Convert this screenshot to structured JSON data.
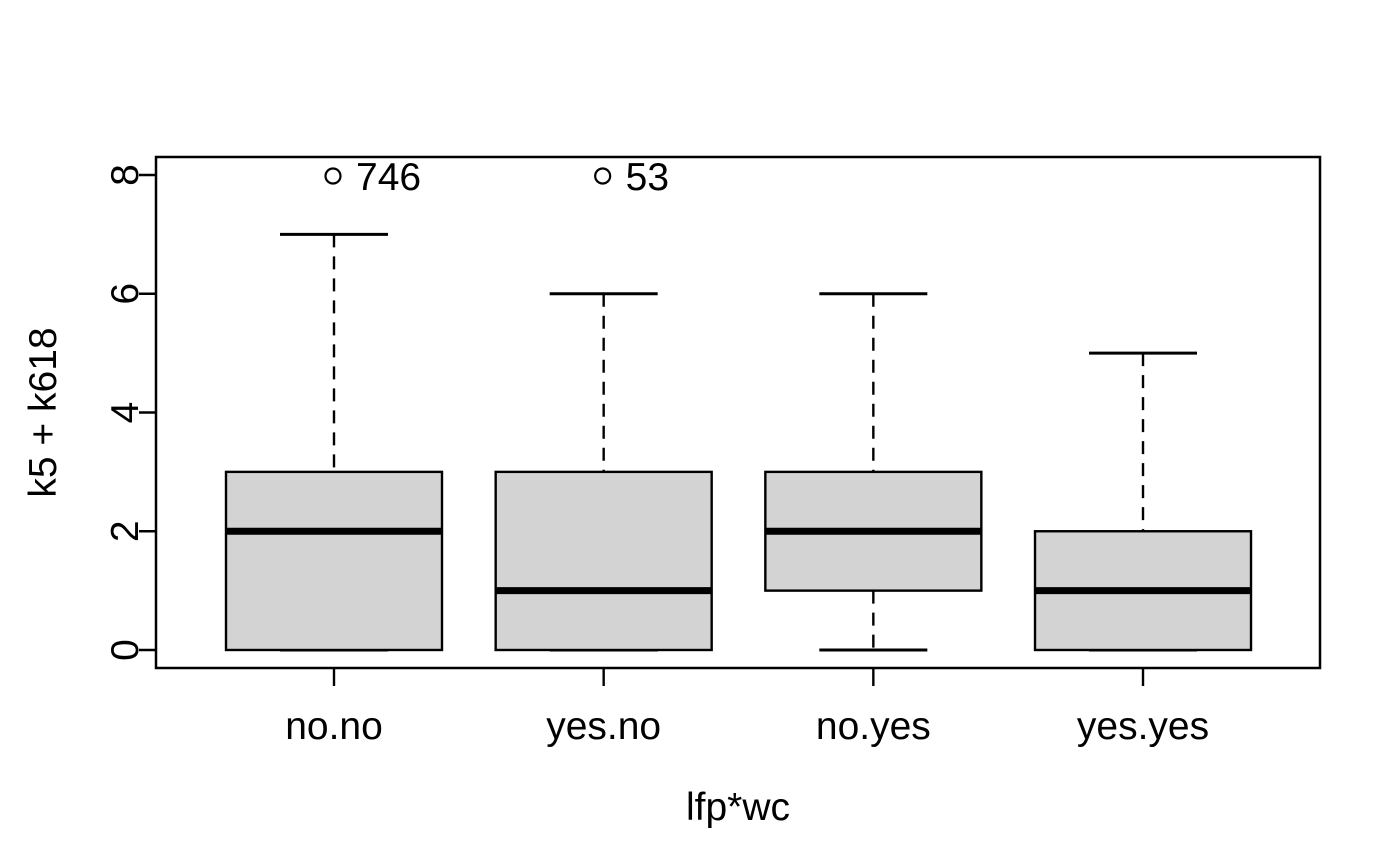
{
  "chart_data": {
    "type": "boxplot",
    "title": "",
    "xlabel": "lfp*wc",
    "ylabel": "k5 + k618",
    "categories": [
      "no.no",
      "yes.no",
      "no.yes",
      "yes.yes"
    ],
    "ylim": [
      0,
      8
    ],
    "yticks": [
      0,
      2,
      4,
      6,
      8
    ],
    "grid": false,
    "legend": "none",
    "groups": [
      {
        "category": "no.no",
        "q1": 0,
        "median": 2,
        "q3": 3,
        "whisker_low": 0,
        "whisker_high": 7,
        "outliers": [
          {
            "value": 8,
            "label": "746"
          }
        ]
      },
      {
        "category": "yes.no",
        "q1": 0,
        "median": 1,
        "q3": 3,
        "whisker_low": 0,
        "whisker_high": 6,
        "outliers": [
          {
            "value": 8,
            "label": "53"
          }
        ]
      },
      {
        "category": "no.yes",
        "q1": 1,
        "median": 2,
        "q3": 3,
        "whisker_low": 0,
        "whisker_high": 6,
        "outliers": []
      },
      {
        "category": "yes.yes",
        "q1": 0,
        "median": 1,
        "q3": 2,
        "whisker_low": 0,
        "whisker_high": 5,
        "outliers": []
      }
    ],
    "colors": {
      "box_fill": "#d3d3d3",
      "stroke": "#000000",
      "background": "#ffffff"
    }
  }
}
